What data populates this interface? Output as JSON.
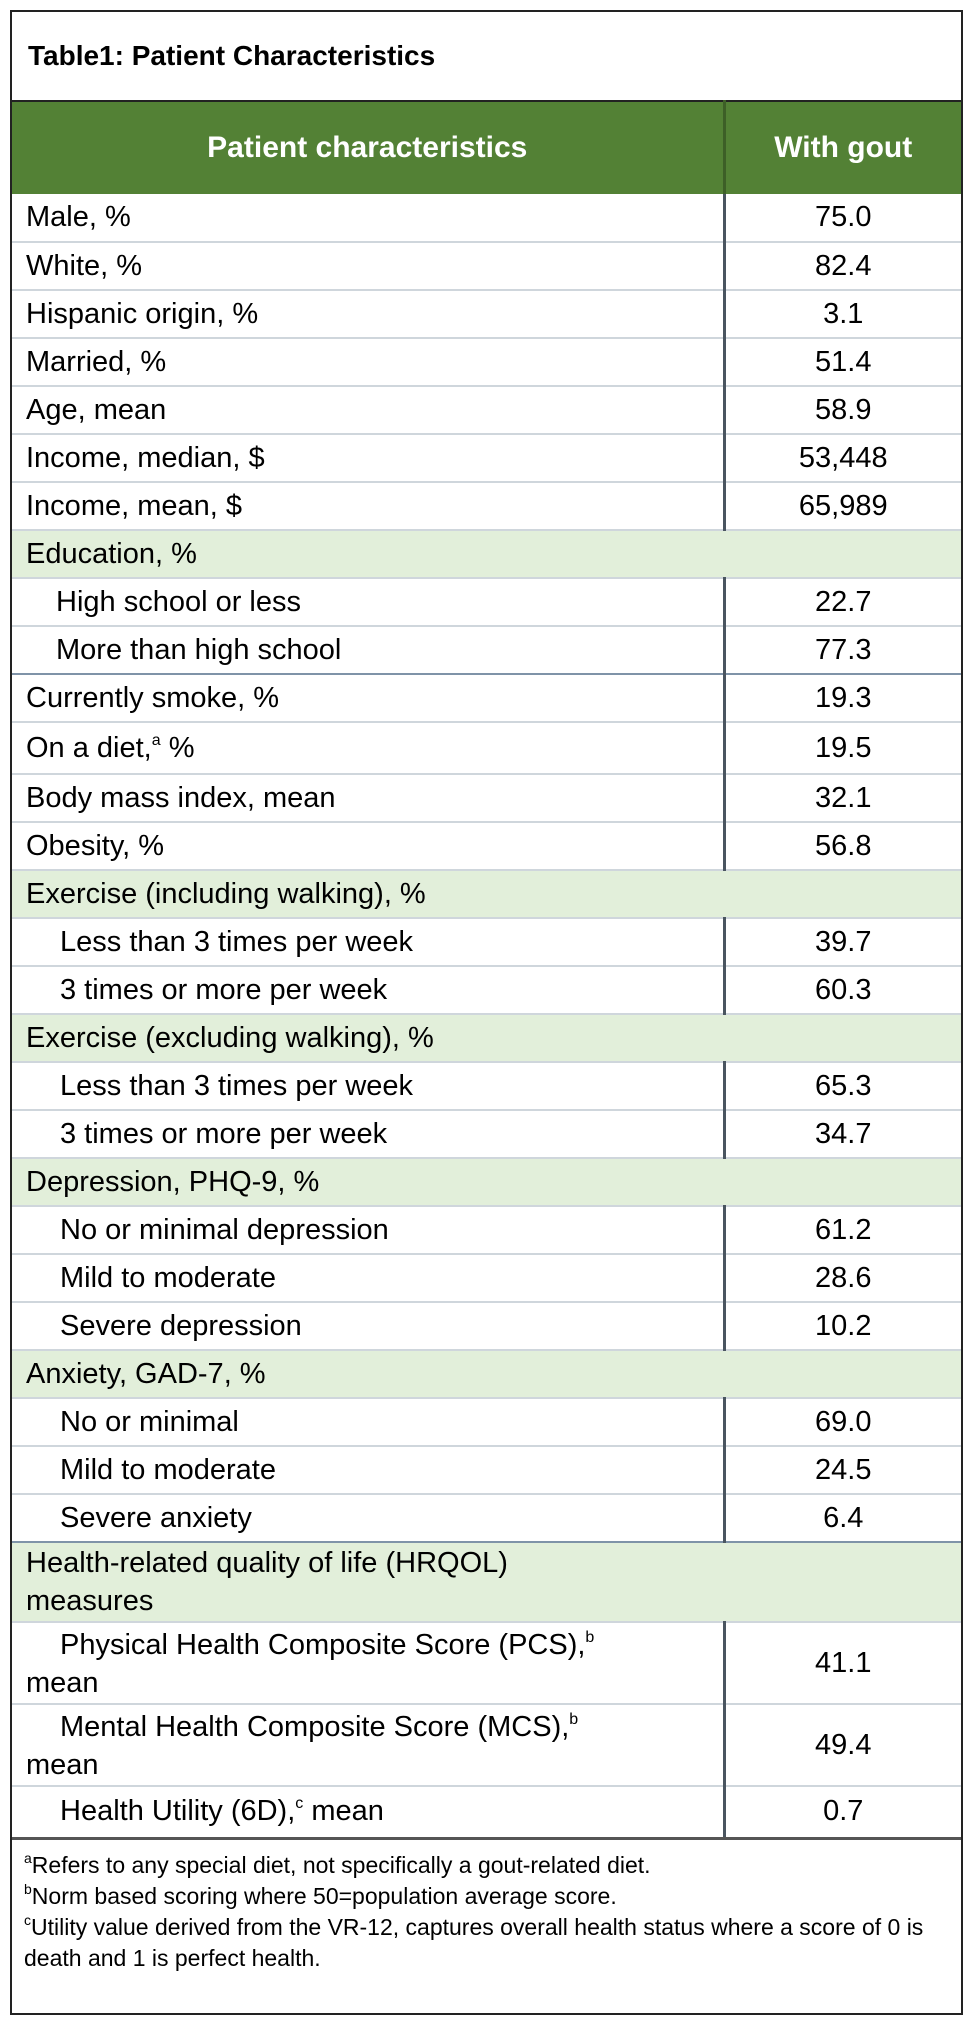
{
  "title": "Table1: Patient Characteristics",
  "columns": [
    "Patient characteristics",
    "With gout"
  ],
  "rows": [
    {
      "label": "Male, %",
      "value": "75.0"
    },
    {
      "label": "White, %",
      "value": "82.4"
    },
    {
      "label": "Hispanic origin, %",
      "value": "3.1"
    },
    {
      "label": "Married, %",
      "value": "51.4"
    },
    {
      "label": "Age, mean",
      "value": "58.9"
    },
    {
      "label": "Income, median, $",
      "value": "53,448"
    },
    {
      "label": "Income, mean, $",
      "value": "65,989"
    },
    {
      "label": "Education, %"
    },
    {
      "label": "High school or less",
      "value": "22.7"
    },
    {
      "label": "More than high school",
      "value": "77.3"
    },
    {
      "label": "Currently smoke, %",
      "value": "19.3"
    },
    {
      "label": "On a diet,",
      "sup": "a",
      "label_after": " %",
      "value": "19.5"
    },
    {
      "label": "Body mass index, mean",
      "value": "32.1"
    },
    {
      "label": "Obesity, %",
      "value": "56.8"
    },
    {
      "label": "Exercise (including walking), %"
    },
    {
      "label": "Less than 3 times per week",
      "value": "39.7"
    },
    {
      "label": "3 times or more per week",
      "value": "60.3"
    },
    {
      "label": "Exercise (excluding walking), %"
    },
    {
      "label": "Less than 3 times per week",
      "value": "65.3"
    },
    {
      "label": "3 times or more per week",
      "value": "34.7"
    },
    {
      "label": "Depression, PHQ-9, %"
    },
    {
      "label": "No or minimal depression",
      "value": "61.2"
    },
    {
      "label": "Mild to moderate",
      "value": "28.6"
    },
    {
      "label": "Severe depression",
      "value": "10.2"
    },
    {
      "label": "Anxiety, GAD-7, %"
    },
    {
      "label": "No or minimal",
      "value": "69.0"
    },
    {
      "label": "Mild to moderate",
      "value": "24.5"
    },
    {
      "label": "Severe anxiety",
      "value": "6.4"
    },
    {
      "label_line1": "Health-related quality of life (HRQOL)",
      "label_line2": "measures"
    },
    {
      "label_line1": "Physical Health Composite Score (PCS),",
      "sup": "b",
      "label_line2": "mean",
      "value": "41.1"
    },
    {
      "label_line1": "Mental Health Composite Score (MCS),",
      "sup": "b",
      "label_line2": "mean",
      "value": "49.4"
    },
    {
      "label": "Health Utility (6D),",
      "sup": "c",
      "label_after": " mean",
      "value": "0.7"
    }
  ],
  "footnotes": [
    {
      "mark": "a",
      "text": "Refers to any special diet, not specifically a gout-related diet."
    },
    {
      "mark": "b",
      "text": "Norm based scoring where 50=population average score."
    },
    {
      "mark": "c",
      "text": "Utility value derived from the VR-12, captures overall health status where a score of 0 is death and 1 is perfect health."
    }
  ]
}
